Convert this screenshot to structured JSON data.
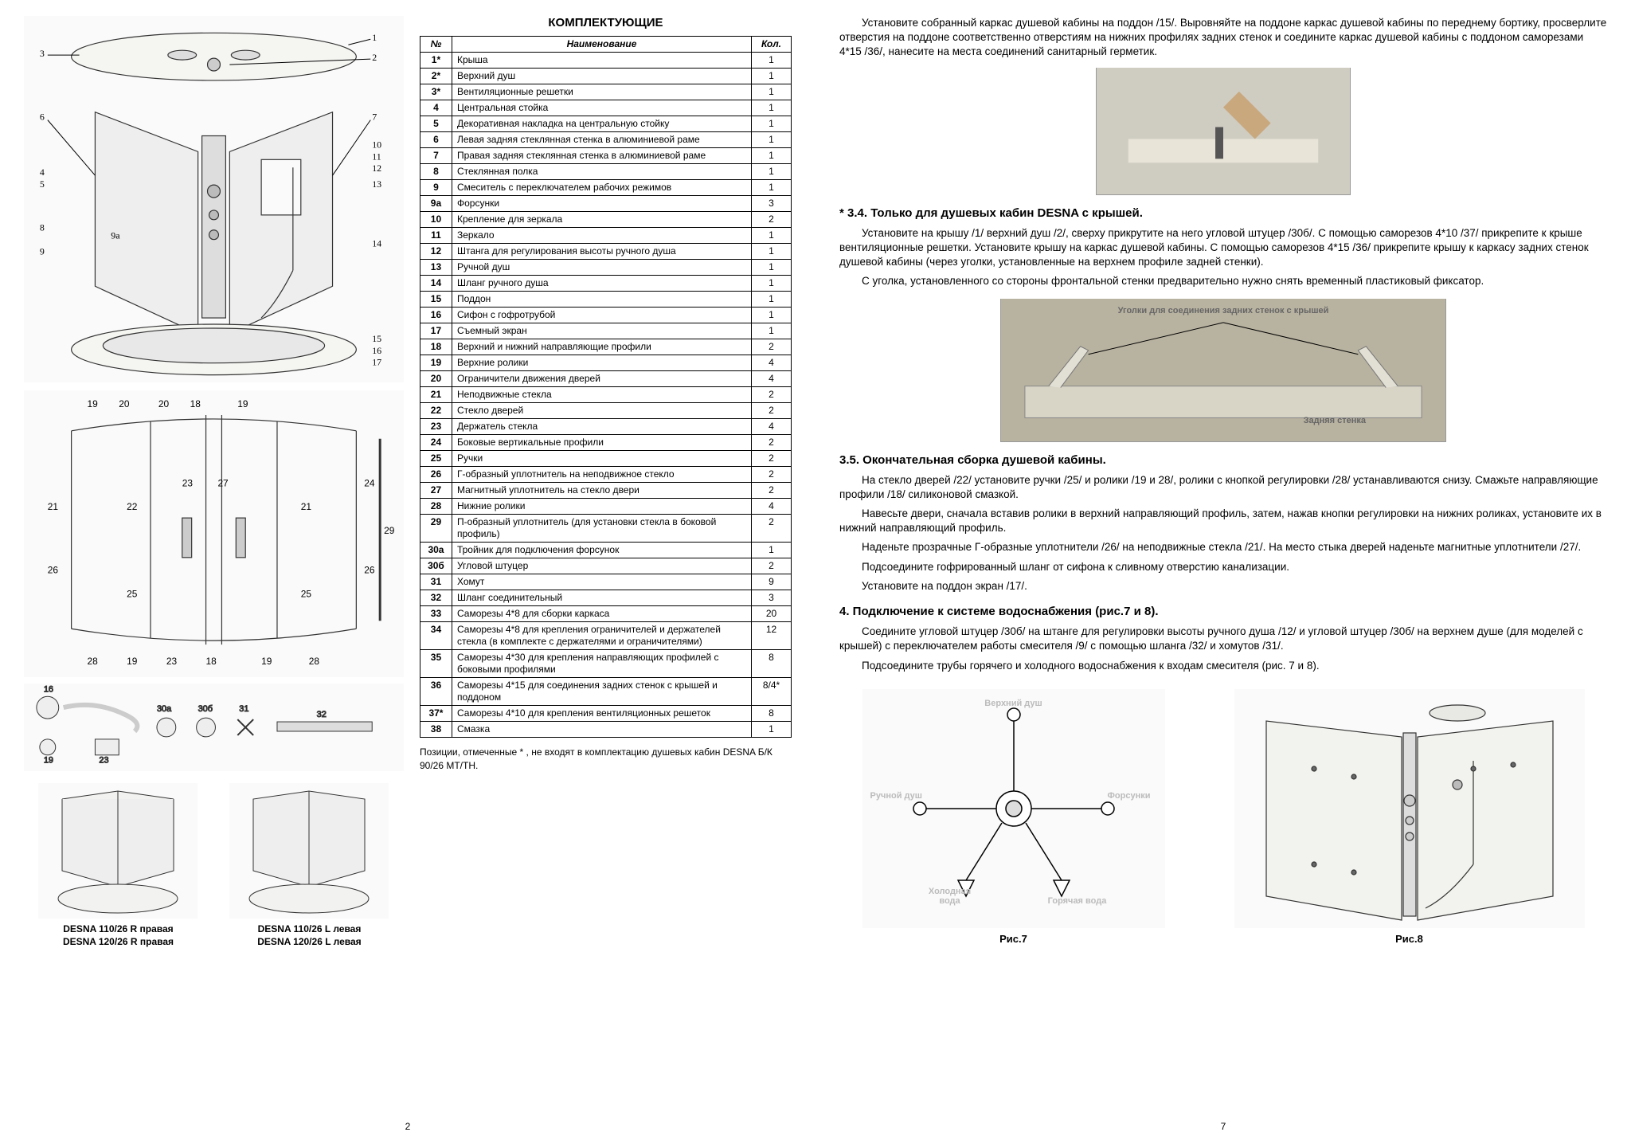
{
  "leftPage": {
    "title": "КОМПЛЕКТУЮЩИЕ",
    "tableHeader": {
      "num": "№",
      "name": "Наименование",
      "qty": "Кол."
    },
    "parts": [
      {
        "n": "1*",
        "name": "Крыша",
        "q": "1"
      },
      {
        "n": "2*",
        "name": "Верхний душ",
        "q": "1"
      },
      {
        "n": "3*",
        "name": "Вентиляционные решетки",
        "q": "1"
      },
      {
        "n": "4",
        "name": "Центральная стойка",
        "q": "1"
      },
      {
        "n": "5",
        "name": "Декоративная накладка на центральную стойку",
        "q": "1"
      },
      {
        "n": "6",
        "name": "Левая задняя стеклянная стенка в алюминиевой раме",
        "q": "1"
      },
      {
        "n": "7",
        "name": "Правая задняя стеклянная стенка в алюминиевой раме",
        "q": "1"
      },
      {
        "n": "8",
        "name": "Стеклянная полка",
        "q": "1"
      },
      {
        "n": "9",
        "name": "Смеситель с переключателем рабочих режимов",
        "q": "1"
      },
      {
        "n": "9а",
        "name": "Форсунки",
        "q": "3"
      },
      {
        "n": "10",
        "name": "Крепление для зеркала",
        "q": "2"
      },
      {
        "n": "11",
        "name": "Зеркало",
        "q": "1"
      },
      {
        "n": "12",
        "name": "Штанга для регулирования высоты ручного душа",
        "q": "1"
      },
      {
        "n": "13",
        "name": "Ручной душ",
        "q": "1"
      },
      {
        "n": "14",
        "name": "Шланг ручного душа",
        "q": "1"
      },
      {
        "n": "15",
        "name": "Поддон",
        "q": "1"
      },
      {
        "n": "16",
        "name": "Сифон с гофротрубой",
        "q": "1"
      },
      {
        "n": "17",
        "name": "Съемный экран",
        "q": "1"
      },
      {
        "n": "18",
        "name": "Верхний и нижний направляющие профили",
        "q": "2"
      },
      {
        "n": "19",
        "name": "Верхние ролики",
        "q": "4"
      },
      {
        "n": "20",
        "name": "Ограничители движения дверей",
        "q": "4"
      },
      {
        "n": "21",
        "name": "Неподвижные стекла",
        "q": "2"
      },
      {
        "n": "22",
        "name": "Стекло дверей",
        "q": "2"
      },
      {
        "n": "23",
        "name": "Держатель стекла",
        "q": "4"
      },
      {
        "n": "24",
        "name": "Боковые вертикальные профили",
        "q": "2"
      },
      {
        "n": "25",
        "name": "Ручки",
        "q": "2"
      },
      {
        "n": "26",
        "name": "Г-образный уплотнитель на неподвижное стекло",
        "q": "2"
      },
      {
        "n": "27",
        "name": "Магнитный уплотнитель на стекло двери",
        "q": "2"
      },
      {
        "n": "28",
        "name": "Нижние ролики",
        "q": "4"
      },
      {
        "n": "29",
        "name": "П-образный уплотнитель (для установки стекла в боковой профиль)",
        "q": "2"
      },
      {
        "n": "30а",
        "name": "Тройник для подключения форсунок",
        "q": "1"
      },
      {
        "n": "30б",
        "name": "Угловой штуцер",
        "q": "2"
      },
      {
        "n": "31",
        "name": "Хомут",
        "q": "9"
      },
      {
        "n": "32",
        "name": "Шланг соединительный",
        "q": "3"
      },
      {
        "n": "33",
        "name": "Саморезы 4*8 для сборки каркаса",
        "q": "20"
      },
      {
        "n": "34",
        "name": "Саморезы 4*8 для крепления ограничителей и держателей стекла (в комплекте с держателями и ограничителями)",
        "q": "12"
      },
      {
        "n": "35",
        "name": "Саморезы 4*30 для крепления направляющих профилей с боковыми профилями",
        "q": "8"
      },
      {
        "n": "36",
        "name": "Саморезы 4*15 для соединения задних стенок с крышей и поддоном",
        "q": "8/4*"
      },
      {
        "n": "37*",
        "name": "Саморезы 4*10 для крепления вентиляционных решеток",
        "q": "8"
      },
      {
        "n": "38",
        "name": "Смазка",
        "q": "1"
      }
    ],
    "footnote": "Позиции, отмеченные * , не входят в комплектацию душевых кабин DESNA Б/К 90/26 МТ/ТН.",
    "modelR1": "DESNA 110/26 R правая",
    "modelR2": "DESNA 120/26 R правая",
    "modelL1": "DESNA 110/26 L левая",
    "modelL2": "DESNA 120/26 L левая",
    "pageNum": "2"
  },
  "rightPage": {
    "para1": "Установите собранный каркас душевой кабины на поддон /15/. Выровняйте на поддоне каркас душевой кабины по переднему бортику, просверлите отверстия на поддоне соответственно отверстиям на нижних профилях задних стенок и соедините каркас душевой кабины с поддоном саморезами 4*15 /36/, нанесите на места соединений санитарный герметик.",
    "h34": "* 3.4. Только для душевых кабин DESNA с крышей.",
    "para34a": "Установите на крышу /1/ верхний душ /2/, сверху прикрутите на него угловой штуцер /30б/. С помощью саморезов 4*10 /37/ прикрепите к крыше вентиляционные решетки. Установите крышу на каркас душевой кабины. С помощью саморезов 4*15 /36/ прикрепите крышу к каркасу задних стенок душевой кабины (через уголки, установленные на верхнем профиле задней стенки).",
    "para34b": "С уголка, установленного со стороны фронтальной стенки предварительно нужно снять временный пластиковый фиксатор.",
    "photoAnnot1": "Уголки для соединения задних стенок с крышей",
    "photoAnnot2": "Задняя стенка",
    "h35": "3.5. Окончательная сборка душевой кабины.",
    "para35a": "На стекло дверей /22/ установите ручки /25/ и ролики /19 и 28/, ролики с кнопкой регулировки /28/ устанавливаются снизу. Смажьте направляющие профили /18/ силиконовой смазкой.",
    "para35b": "Навесьте двери, сначала вставив ролики в верхний направляющий профиль, затем, нажав кнопки регулировки на нижних роликах, установите их в нижний направляющий профиль.",
    "para35c": "Наденьте прозрачные Г-образные уплотнители /26/ на неподвижные стекла /21/. На место стыка дверей наденьте магнитные уплотнители /27/.",
    "para35d": "Подсоедините гофрированный шланг от сифона к сливному отверстию канализации.",
    "para35e": "Установите на поддон экран /17/.",
    "h4": "4. Подключение к системе водоснабжения (рис.7 и 8).",
    "para4a": "Соедините угловой штуцер /30б/ на штанге для регулировки высоты ручного душа /12/ и угловой штуцер /30б/ на верхнем душе (для моделей с крышей) с переключателем работы смесителя /9/ с помощью шланга /32/ и хомутов /31/.",
    "para4b": "Подсоедините трубы горячего и холодного водоснабжения к входам смесителя (рис. 7 и 8).",
    "fig7labels": {
      "top": "Верхний душ",
      "left": "Ручной душ",
      "right": "Форсунки",
      "coldL": "Холодная вода",
      "hotR": "Горячая вода"
    },
    "fig7": "Рис.7",
    "fig8": "Рис.8",
    "pageNum": "7"
  },
  "colors": {
    "text": "#000000",
    "bg": "#ffffff",
    "border": "#000000",
    "diagramFill": "#f5f5f2",
    "diagramStroke": "#333333"
  }
}
